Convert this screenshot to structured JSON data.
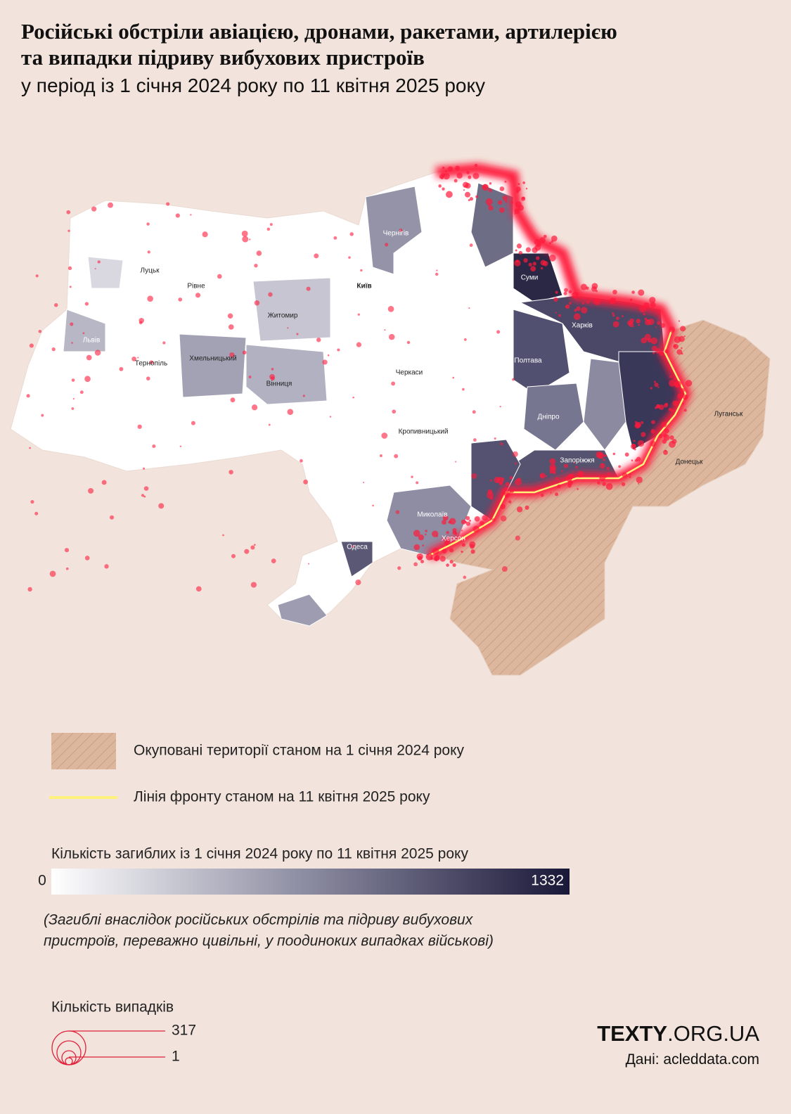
{
  "header": {
    "title_lines": [
      "Російські обстріли авіацією, дронами, ракетами, артилерією",
      "та випадки підриву вибухових пристроїв"
    ],
    "subtitle": "у період із 1 січня 2024 року по 11 квітня 2025 року"
  },
  "map": {
    "cities": [
      "Луцьк",
      "Рівне",
      "Житомир",
      "Київ",
      "Чернігів",
      "Суми",
      "Харків",
      "Полтава",
      "Львів",
      "Тернопіль",
      "Хмельницький",
      "Вінниця",
      "Черкаси",
      "Кропивницький",
      "Дніпро",
      "Запоріжжя",
      "Миколаїв",
      "Херсон",
      "Одеса",
      "Луганськ",
      "Донецьк"
    ]
  },
  "legend": {
    "occupied": "Окуповані території станом на 1 січня 2024 року",
    "front_line": "Лінія фронту станом на 11 квітня 2025 року",
    "deaths_title": "Кількість загиблих із 1 січня 2024 року по 11 квітня 2025 року",
    "deaths_min": 0,
    "deaths_max": 1332,
    "deaths_note_lines": [
      "(Загиблі внаслідок російських обстрілів та підриву вибухових",
      "пристроїв, переважно цивільні, у поодиноких випадках військові)"
    ],
    "cases_title": "Кількість випадків",
    "cases_max": 317,
    "cases_min": 1
  },
  "footer": {
    "brand_main": "TEXTY",
    "brand_domain": ".ORG.UA",
    "source": "Дані: acleddata.com"
  }
}
